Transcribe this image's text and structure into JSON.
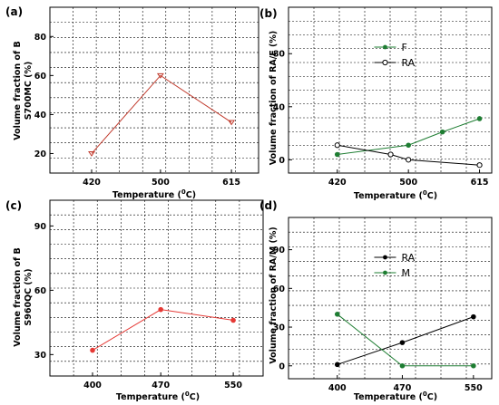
{
  "chart_data": [
    {
      "type": "line",
      "panel": "(a)",
      "xlabel": "Temperature (",
      "xlabel_sup": "0",
      "xlabel_suffix": "C)",
      "ylabel_line1": "Volume fraction of B",
      "ylabel_line2": "S700MC (%)",
      "categories": [
        "420",
        "500",
        "615"
      ],
      "yticks": [
        "20",
        "40",
        "60",
        "80"
      ],
      "ylim": [
        10,
        95
      ],
      "grid": true,
      "series": [
        {
          "name": "",
          "color": "#c0392b",
          "marker": "tri-down",
          "values": [
            20,
            60,
            36
          ]
        }
      ]
    },
    {
      "type": "line",
      "panel": "(b)",
      "xlabel": "Temperature (",
      "xlabel_sup": "0",
      "xlabel_suffix": "C)",
      "ylabel_line1": "Volume fraction of RA/F (%)",
      "ylabel_line2": "",
      "categories": [
        "420",
        "500",
        "615"
      ],
      "yticks": [
        "0",
        "40",
        "80"
      ],
      "ylim": [
        -10,
        115
      ],
      "grid": true,
      "legend_position": "top-center",
      "series": [
        {
          "name": "F",
          "color": "#1e7d32",
          "marker": "filled",
          "x": [
            420,
            500,
            555,
            615
          ],
          "values": [
            4,
            11,
            21,
            31
          ]
        },
        {
          "name": "RA",
          "color": "#000000",
          "marker": "open",
          "x": [
            420,
            480,
            500,
            615
          ],
          "values": [
            11,
            4,
            0,
            -4
          ]
        }
      ]
    },
    {
      "type": "line",
      "panel": "(c)",
      "xlabel": "Temperature (",
      "xlabel_sup": "0",
      "xlabel_suffix": "C)",
      "ylabel_line1": "Volume fraction of B",
      "ylabel_line2": "S960QC (%)",
      "categories": [
        "400",
        "470",
        "550"
      ],
      "yticks": [
        "30",
        "60",
        "90"
      ],
      "ylim": [
        20,
        102
      ],
      "grid": true,
      "series": [
        {
          "name": "",
          "color": "#e53935",
          "marker": "filled",
          "values": [
            32,
            51,
            46
          ]
        }
      ]
    },
    {
      "type": "line",
      "panel": "(d)",
      "xlabel": "Temperature (",
      "xlabel_sup": "0",
      "xlabel_suffix": "C)",
      "ylabel_line1": "Volume fraction of RA/M (%)",
      "ylabel_line2": "",
      "categories": [
        "400",
        "470",
        "550"
      ],
      "yticks": [
        "0",
        "30",
        "60",
        "90"
      ],
      "ylim": [
        -10,
        115
      ],
      "grid": true,
      "legend_position": "top-center",
      "series": [
        {
          "name": "RA",
          "color": "#000000",
          "marker": "filled",
          "values": [
            1,
            18,
            38
          ]
        },
        {
          "name": "M",
          "color": "#1e7d32",
          "marker": "filled",
          "values": [
            40,
            0,
            0
          ]
        }
      ]
    }
  ]
}
